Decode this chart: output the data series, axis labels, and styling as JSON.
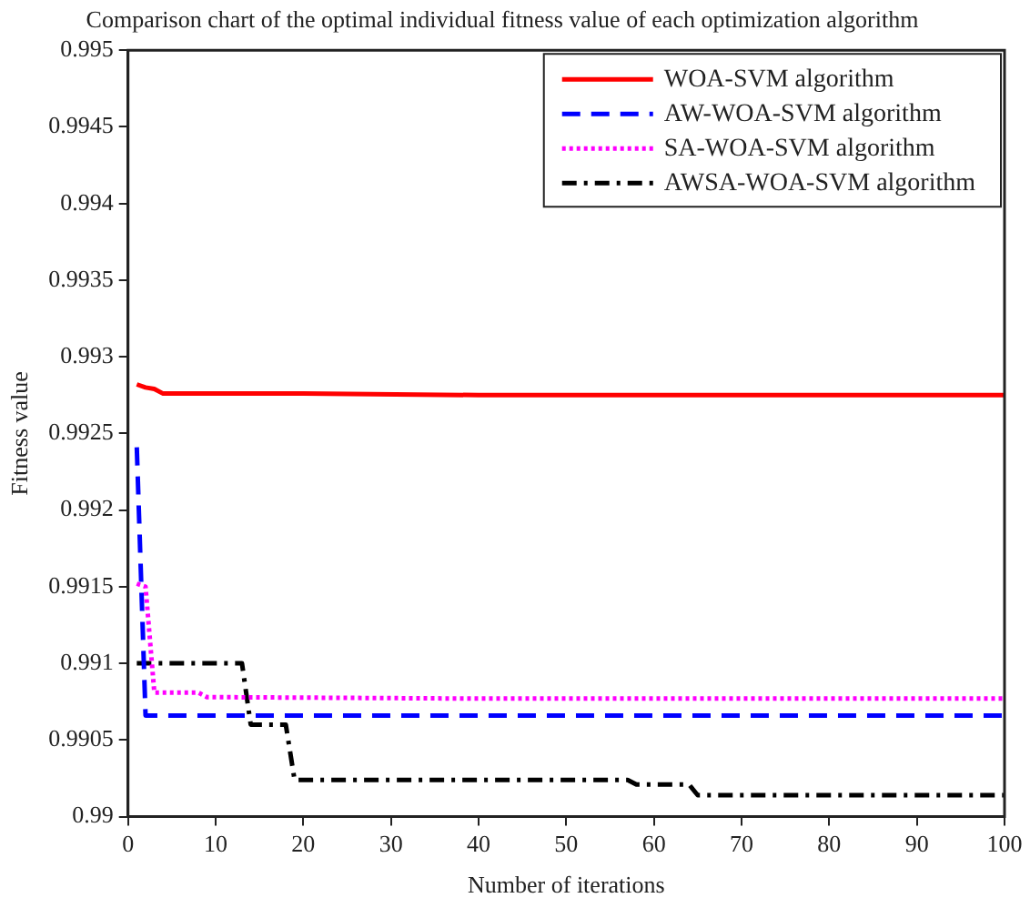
{
  "chart_data": {
    "type": "line",
    "title": "Comparison chart of the optimal individual fitness value of each optimization algorithm",
    "xlabel": "Number of iterations",
    "ylabel": "Fitness value",
    "xlim": [
      0,
      100
    ],
    "xticks": [
      0,
      10,
      20,
      30,
      40,
      50,
      60,
      70,
      80,
      90,
      100
    ],
    "ylim": [
      0.99,
      0.995
    ],
    "yticks": [
      0.99,
      0.9905,
      0.991,
      0.9915,
      0.992,
      0.9925,
      0.993,
      0.9935,
      0.994,
      0.9945,
      0.995
    ],
    "grid": false,
    "legend": "top right",
    "marker": "none",
    "series": [
      {
        "name": "WOA-SVM algorithm",
        "color": "#ff0000",
        "line_style": "solid",
        "x": [
          1,
          2,
          3,
          4,
          20,
          40,
          60,
          100
        ],
        "values": [
          0.99282,
          0.9928,
          0.99279,
          0.99276,
          0.99276,
          0.99275,
          0.99275,
          0.99275
        ]
      },
      {
        "name": "AW-WOA-SVM algorithm",
        "color": "#0000ff",
        "line_style": "dashed",
        "x": [
          1,
          2,
          100
        ],
        "values": [
          0.99241,
          0.99066,
          0.99066
        ]
      },
      {
        "name": "SA-WOA-SVM algorithm",
        "color": "#ff00ff",
        "line_style": "dotted",
        "x": [
          1,
          2,
          3,
          8,
          9,
          40,
          100
        ],
        "values": [
          0.99152,
          0.9915,
          0.99081,
          0.99081,
          0.99078,
          0.99077,
          0.99077
        ]
      },
      {
        "name": "AWSA-WOA-SVM algorithm",
        "color": "#000000",
        "line_style": "dashdot",
        "x": [
          1,
          13,
          14,
          18,
          19,
          57,
          58,
          64,
          65,
          100
        ],
        "values": [
          0.991,
          0.991,
          0.9906,
          0.9906,
          0.99024,
          0.99024,
          0.99021,
          0.99021,
          0.99014,
          0.99014
        ]
      }
    ]
  }
}
